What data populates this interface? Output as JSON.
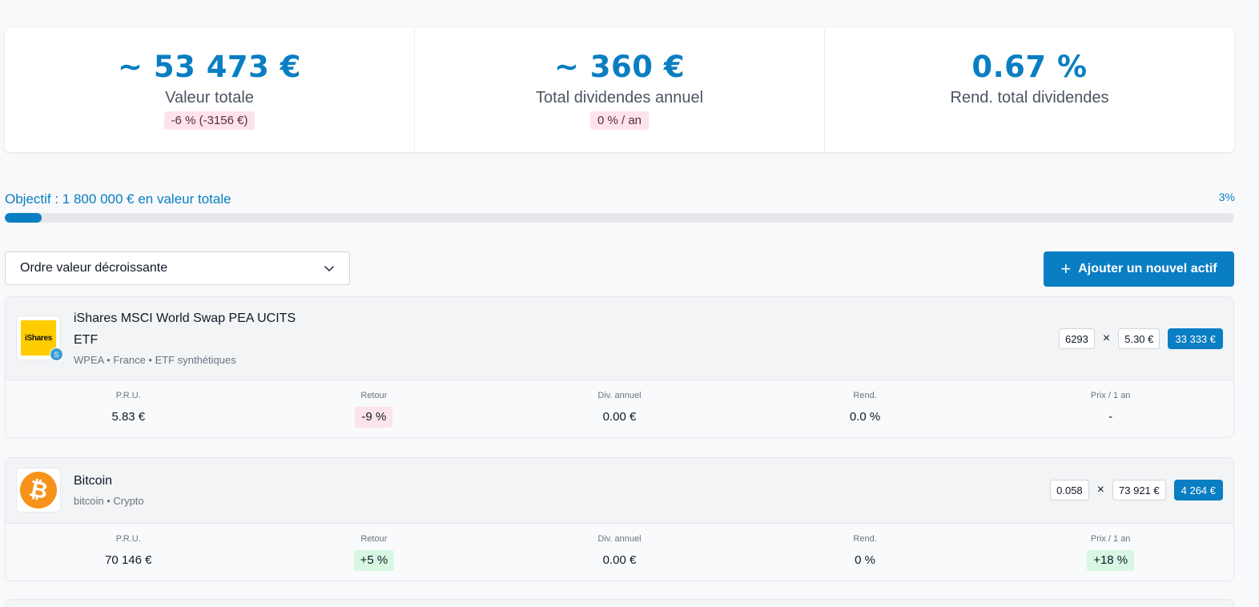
{
  "summary": {
    "total_value": "~ 53 473 €",
    "total_value_label": "Valeur totale",
    "total_value_change": "-6 % (-3156 €)",
    "dividends": "~ 360 €",
    "dividends_label": "Total dividendes annuel",
    "dividends_change": "0 % / an",
    "yield": "0.67 %",
    "yield_label": "Rend. total dividendes"
  },
  "objective": {
    "label": "Objectif : 1 800 000 € en valeur totale",
    "percent_label": "3%",
    "progress": 0.03
  },
  "sort": {
    "selected": "Ordre valeur décroissante",
    "icon": "chevron-down-icon"
  },
  "add_button": {
    "label": "Ajouter un nouvel actif",
    "icon": "plus-icon"
  },
  "colors": {
    "accent": "#0a7ec2",
    "negative_bg": "#fde4ea",
    "positive_bg": "#d7f7e3",
    "ishares_yellow": "#ffcc00",
    "bitcoin_orange": "#f7931a"
  },
  "assets": [
    {
      "logo_text": "iShares",
      "logo_badge": "S",
      "name_line1": "iShares MSCI World Swap PEA UCITS",
      "name_line2": "ETF",
      "meta": "WPEA • France • ETF synthétiques",
      "quantity": "6293",
      "times": "×",
      "price": "5.30 €",
      "total": "33 333 €",
      "stats": [
        {
          "label": "P.R.U.",
          "value": "5.83 €"
        },
        {
          "label": "Retour",
          "value": "-9 %"
        },
        {
          "label": "Div. annuel",
          "value": "0.00 €"
        },
        {
          "label": "Rend.",
          "value": "0.0 %"
        },
        {
          "label": "Prix / 1 an",
          "value": "-"
        }
      ]
    },
    {
      "logo_text": "₿",
      "name_line1": "Bitcoin",
      "meta": "bitcoin • Crypto",
      "quantity": "0.058",
      "times": "×",
      "price": "73 921 €",
      "total": "4 264 €",
      "stats": [
        {
          "label": "P.R.U.",
          "value": "70 146 €"
        },
        {
          "label": "Retour",
          "value": "+5 %"
        },
        {
          "label": "Div. annuel",
          "value": "0.00 €"
        },
        {
          "label": "Rend.",
          "value": "0 %"
        },
        {
          "label": "Prix / 1 an",
          "value": "+18 %"
        }
      ]
    }
  ]
}
